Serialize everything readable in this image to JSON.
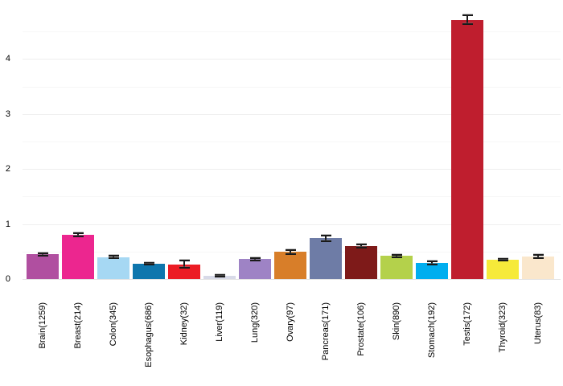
{
  "chart_data": {
    "type": "bar",
    "title": "",
    "xlabel": "",
    "ylabel": "",
    "ylim": [
      0,
      5
    ],
    "y_ticks": [
      0,
      1,
      2,
      3,
      4
    ],
    "y_minor_interval": 0.5,
    "grid": true,
    "legend": false,
    "error_bars": true,
    "categories": [
      "Brain(1259)",
      "Breast(214)",
      "Colon(345)",
      "Esophagus(686)",
      "Kidney(32)",
      "Liver(119)",
      "Lung(320)",
      "Ovary(97)",
      "Pancreas(171)",
      "Prostate(106)",
      "Skin(890)",
      "Stomach(192)",
      "Testis(172)",
      "Thyroid(323)",
      "Uterus(83)"
    ],
    "values": [
      0.45,
      0.8,
      0.4,
      0.28,
      0.27,
      0.06,
      0.36,
      0.49,
      0.74,
      0.6,
      0.42,
      0.29,
      4.71,
      0.35,
      0.41
    ],
    "errors": [
      0.02,
      0.03,
      0.02,
      0.012,
      0.06,
      0.015,
      0.02,
      0.03,
      0.05,
      0.035,
      0.02,
      0.025,
      0.08,
      0.015,
      0.035
    ],
    "bar_colors": [
      "#b04fa0",
      "#ec268f",
      "#a6d8f3",
      "#0e76ad",
      "#ec1c24",
      "#d8dae8",
      "#9e83c5",
      "#d87e29",
      "#6e7ca6",
      "#7e1a19",
      "#b4d14b",
      "#00aeef",
      "#bf1e2e",
      "#f6ea3a",
      "#fae7cc"
    ]
  },
  "colors": {
    "background": "#ffffff",
    "major_gridline": "#eeeeee",
    "minor_gridline": "#f7f7f7",
    "baseline": "#e4e4e4",
    "axis_text": "#000000",
    "error_bar": "#1a1a1a"
  }
}
